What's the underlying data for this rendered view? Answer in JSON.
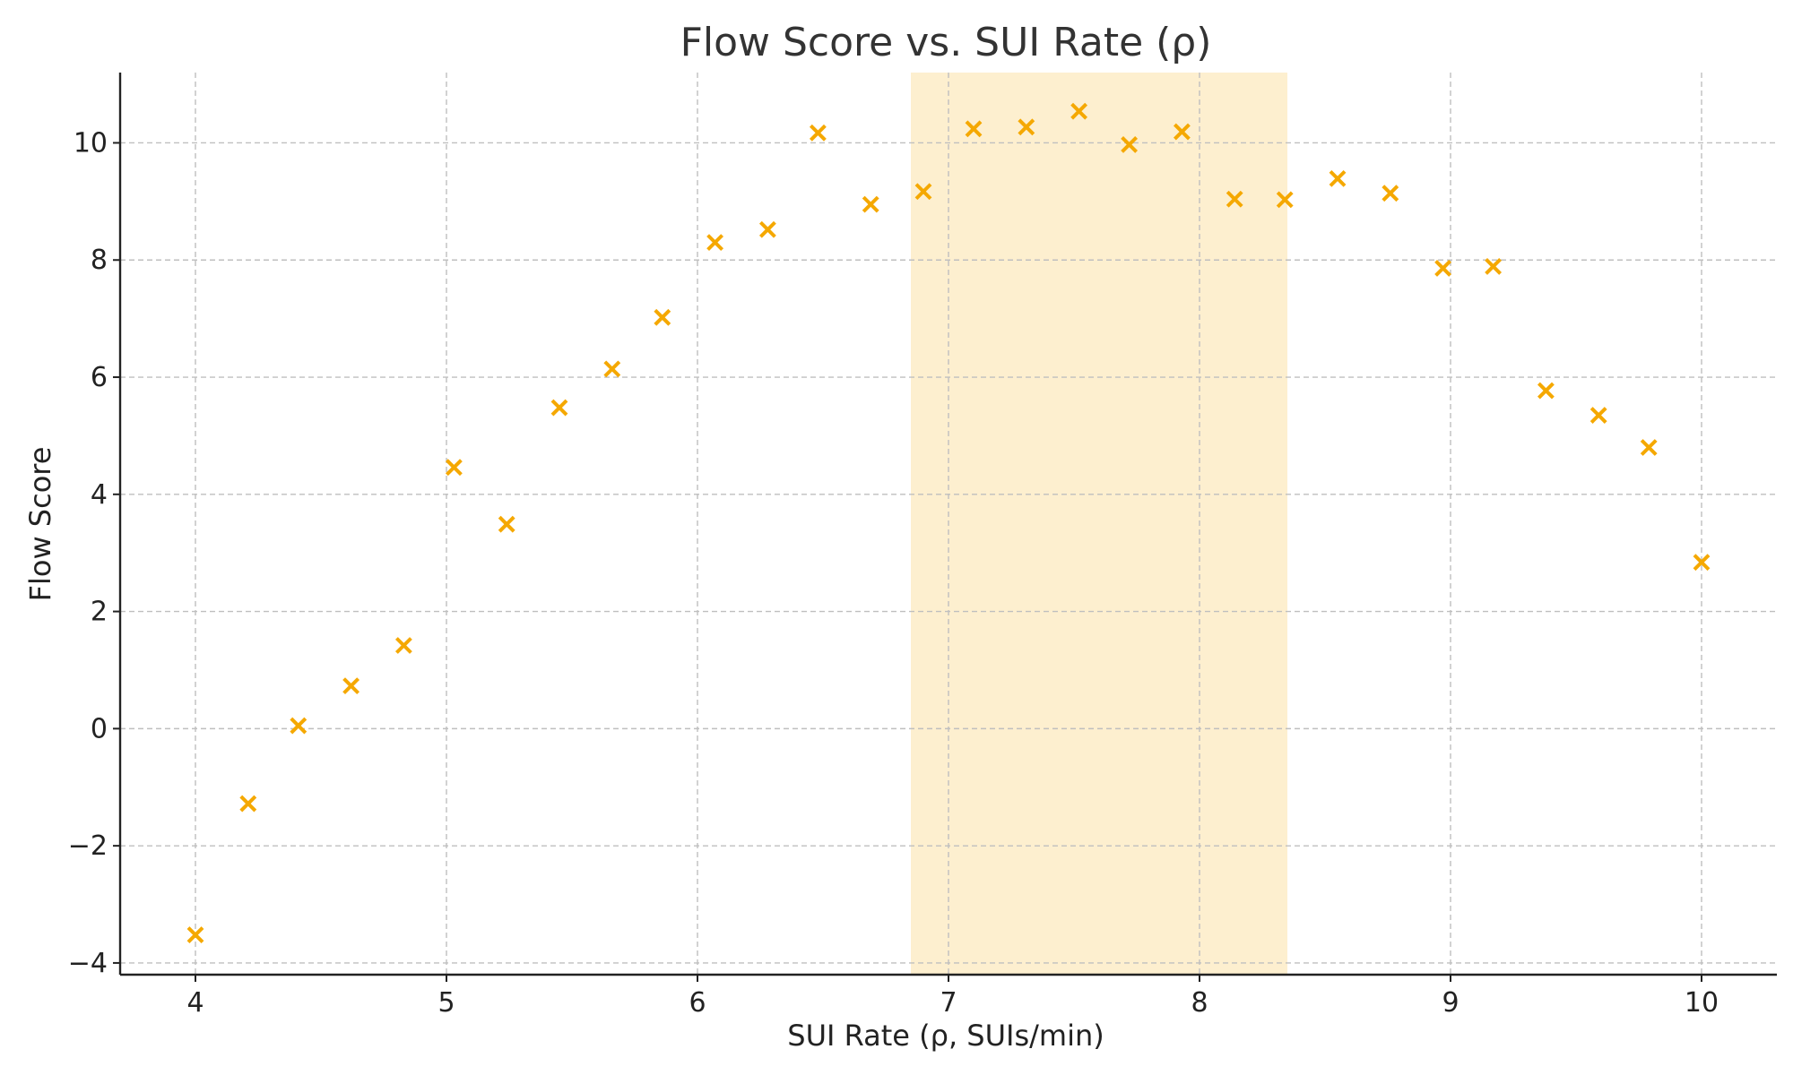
{
  "chart_data": {
    "type": "scatter",
    "title": "Flow Score vs. SUI Rate (ρ)",
    "xlabel": "SUI Rate (ρ, SUIs/min)",
    "ylabel": "Flow Score",
    "xlim": [
      3.7,
      10.3
    ],
    "ylim": [
      -4.2,
      11.2
    ],
    "xticks": [
      4,
      5,
      6,
      7,
      8,
      9,
      10
    ],
    "xtick_labels": [
      "4",
      "5",
      "6",
      "7",
      "8",
      "9",
      "10"
    ],
    "yticks": [
      -4,
      -2,
      0,
      2,
      4,
      6,
      8,
      10
    ],
    "ytick_labels": [
      "−4",
      "−2",
      "0",
      "2",
      "4",
      "6",
      "8",
      "10"
    ],
    "grid": true,
    "marker": "x",
    "marker_color": "#F5A800",
    "highlight_band": {
      "x_start": 6.85,
      "x_end": 8.35,
      "color": "#FDEFCF"
    },
    "x": [
      4.0,
      4.21,
      4.41,
      4.62,
      4.83,
      5.03,
      5.24,
      5.45,
      5.66,
      5.86,
      6.07,
      6.28,
      6.48,
      6.69,
      6.9,
      7.1,
      7.31,
      7.52,
      7.72,
      7.93,
      8.14,
      8.34,
      8.55,
      8.76,
      8.97,
      9.17,
      9.38,
      9.59,
      9.79,
      10.0
    ],
    "y": [
      -3.52,
      -1.28,
      0.05,
      0.73,
      1.42,
      4.46,
      3.49,
      5.48,
      6.14,
      7.02,
      8.3,
      8.52,
      10.17,
      8.95,
      9.17,
      10.24,
      10.27,
      10.54,
      9.97,
      10.19,
      9.04,
      9.03,
      9.39,
      9.14,
      7.86,
      7.89,
      5.77,
      5.35,
      4.8,
      2.84
    ]
  }
}
